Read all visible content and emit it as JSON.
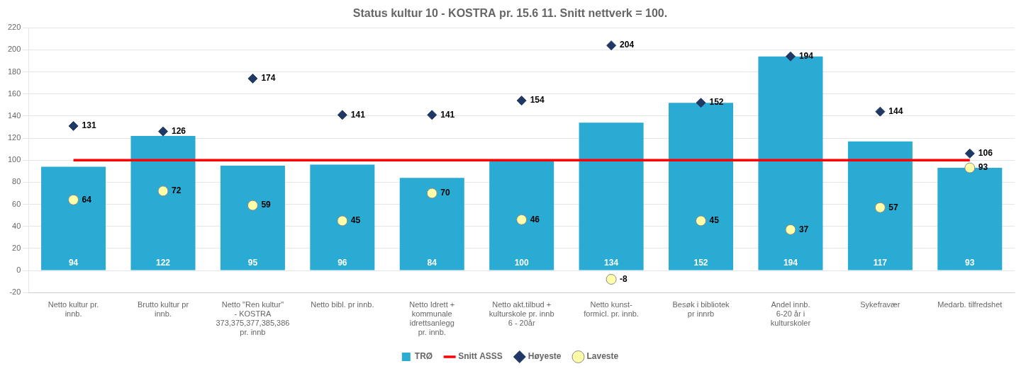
{
  "chart_data": {
    "type": "bar",
    "title": "Status kultur 10 - KOSTRA pr. 15.6 11. Snitt nettverk = 100.",
    "categories": [
      "Netto kultur pr.\ninnb.",
      "Brutto kultur pr\ninnb.",
      "Netto \"Ren kultur\"\n- KOSTRA\n373,375,377,385,386\npr. innb",
      "Netto bibl. pr innb.",
      "Netto Idrett +\nkommunale\nidrettsanlegg\npr. innb.",
      "Netto akt.tilbud +\nkulturskole pr. innb\n6 - 20år",
      "Netto kunst-\nformicl. pr. innb.",
      "Besøk i bibliotek\npr innrb",
      "Andel innb.\n6-20 år i\nkulturskoler",
      "Sykefravær",
      "Medarb. tilfredshet"
    ],
    "series": [
      {
        "name": "TRØ",
        "type": "bar",
        "color": "#29ABD4",
        "data_labels": true,
        "values": [
          94,
          122,
          95,
          96,
          84,
          100,
          134,
          152,
          194,
          117,
          93
        ]
      },
      {
        "name": "Snitt ASSS",
        "type": "line",
        "color": "#FF0000",
        "line_style": "solid",
        "values": [
          100,
          100,
          100,
          100,
          100,
          100,
          100,
          100,
          100,
          100,
          100
        ]
      },
      {
        "name": "Høyeste",
        "type": "scatter",
        "color": "#1F3864",
        "marker": "diamond",
        "line_style": "none",
        "data_labels": true,
        "values": [
          131,
          126,
          174,
          141,
          141,
          154,
          204,
          152,
          194,
          144,
          106
        ]
      },
      {
        "name": "Laveste",
        "type": "scatter",
        "color": "#FFFFAA",
        "marker": "circle",
        "line_style": "none",
        "data_labels": true,
        "values": [
          64,
          72,
          59,
          45,
          70,
          46,
          -8,
          45,
          37,
          57,
          93
        ]
      }
    ],
    "ylim": [
      -20,
      220
    ],
    "yticks": [
      -20,
      0,
      20,
      40,
      60,
      80,
      100,
      120,
      140,
      160,
      180,
      200,
      220
    ],
    "grid": true,
    "legend": "bottom"
  }
}
